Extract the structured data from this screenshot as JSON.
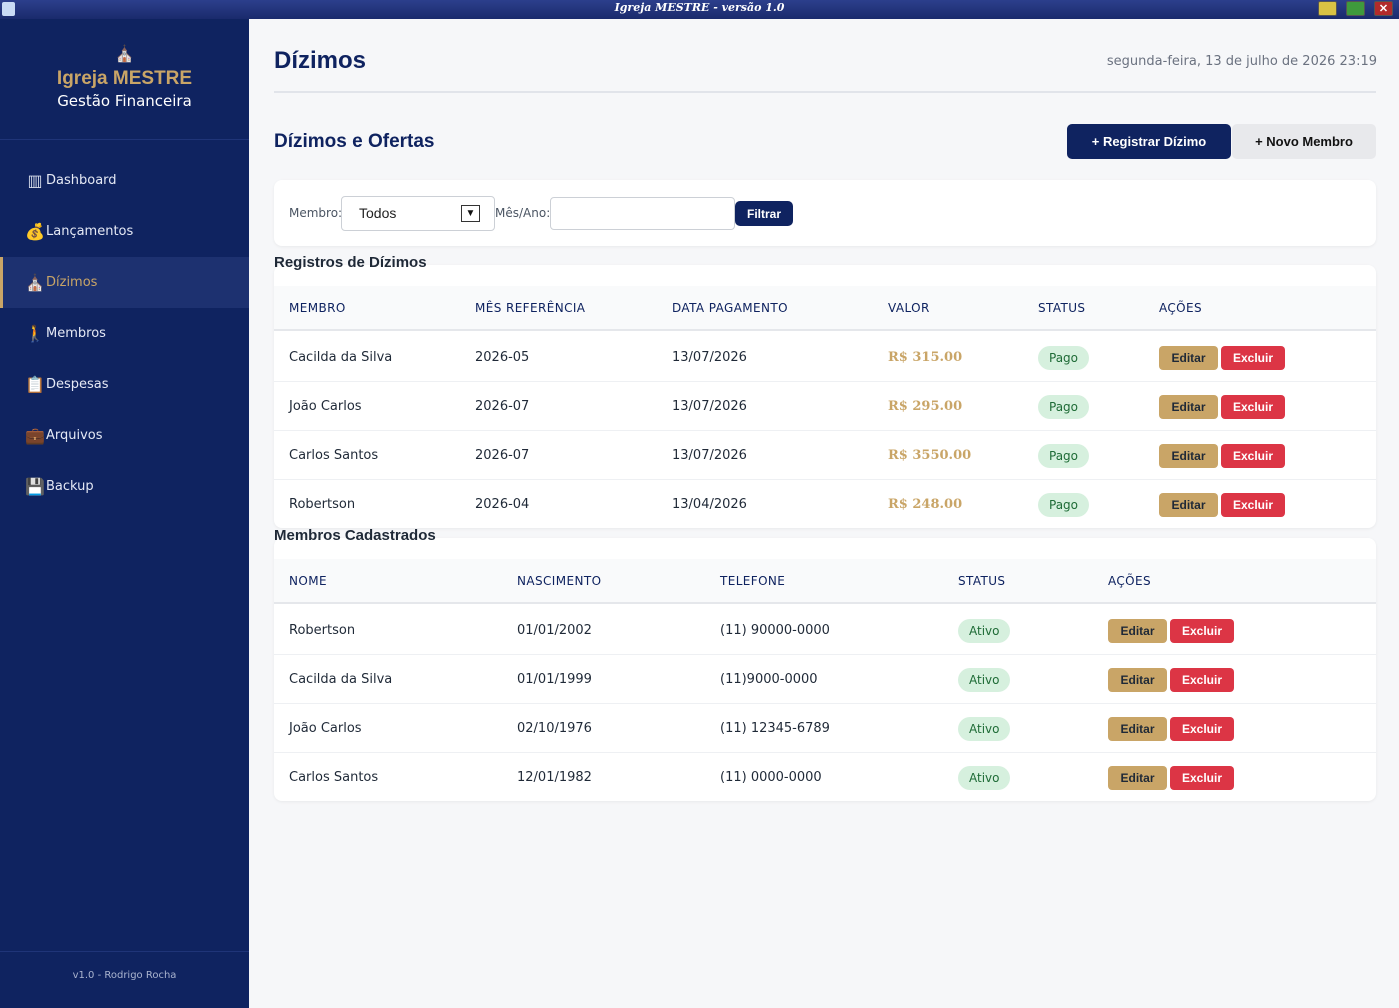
{
  "window": {
    "title": "Igreja MESTRE - versão 1.0"
  },
  "sidebar": {
    "brand_icon": "church-icon",
    "brand_name": "Igreja MESTRE",
    "brand_sub": "Gestão Financeira",
    "items": [
      {
        "label": "Dashboard",
        "icon": "chart-icon",
        "glyph": "▥"
      },
      {
        "label": "Lançamentos",
        "icon": "money-bag-icon",
        "glyph": "💰"
      },
      {
        "label": "Dízimos",
        "icon": "tithe-icon",
        "glyph": "⛪"
      },
      {
        "label": "Membros",
        "icon": "person-icon",
        "glyph": "🚶"
      },
      {
        "label": "Despesas",
        "icon": "clipboard-icon",
        "glyph": "📋"
      },
      {
        "label": "Arquivos",
        "icon": "briefcase-icon",
        "glyph": "💼"
      },
      {
        "label": "Backup",
        "icon": "floppy-icon",
        "glyph": "💾"
      }
    ],
    "active_index": 2,
    "footer": "v1.0 - Rodrigo Rocha"
  },
  "header": {
    "title": "Dízimos",
    "datetime": "segunda-feira, 13 de julho de 2026 23:19"
  },
  "section": {
    "title": "Dízimos e Ofertas",
    "register_button": "+ Registrar Dízimo",
    "new_member_button": "+ Novo Membro"
  },
  "filter": {
    "member_label": "Membro:",
    "member_value": "Todos",
    "month_label": "Mês/Ano:",
    "month_value": "",
    "button": "Filtrar"
  },
  "tithes": {
    "title": "Registros de Dízimos",
    "columns": [
      "MEMBRO",
      "MÊS REFERÊNCIA",
      "DATA PAGAMENTO",
      "VALOR",
      "STATUS",
      "AÇÕES"
    ],
    "rows": [
      {
        "membro": "Cacilda da Silva",
        "mes": "2026-05",
        "data": "13/07/2026",
        "valor": "R$ 315.00",
        "status": "Pago"
      },
      {
        "membro": "João Carlos",
        "mes": "2026-07",
        "data": "13/07/2026",
        "valor": "R$ 295.00",
        "status": "Pago"
      },
      {
        "membro": "Carlos Santos",
        "mes": "2026-07",
        "data": "13/07/2026",
        "valor": "R$ 3550.00",
        "status": "Pago"
      },
      {
        "membro": "Robertson",
        "mes": "2026-04",
        "data": "13/04/2026",
        "valor": "R$ 248.00",
        "status": "Pago"
      }
    ],
    "edit_label": "Editar",
    "delete_label": "Excluir"
  },
  "members": {
    "title": "Membros Cadastrados",
    "columns": [
      "NOME",
      "NASCIMENTO",
      "TELEFONE",
      "STATUS",
      "AÇÕES"
    ],
    "rows": [
      {
        "nome": "Robertson",
        "nascimento": "01/01/2002",
        "telefone": "(11) 90000-0000",
        "status": "Ativo"
      },
      {
        "nome": "Cacilda da Silva",
        "nascimento": "01/01/1999",
        "telefone": "(11)9000-0000",
        "status": "Ativo"
      },
      {
        "nome": "João Carlos",
        "nascimento": "02/10/1976",
        "telefone": "(11) 12345-6789",
        "status": "Ativo"
      },
      {
        "nome": "Carlos Santos",
        "nascimento": "12/01/1982",
        "telefone": "(11) 0000-0000",
        "status": "Ativo"
      }
    ],
    "edit_label": "Editar",
    "delete_label": "Excluir"
  },
  "colors": {
    "navy": "#0f2360",
    "gold": "#c9a567",
    "danger": "#dc3545",
    "success_bg": "#d6f0de"
  }
}
